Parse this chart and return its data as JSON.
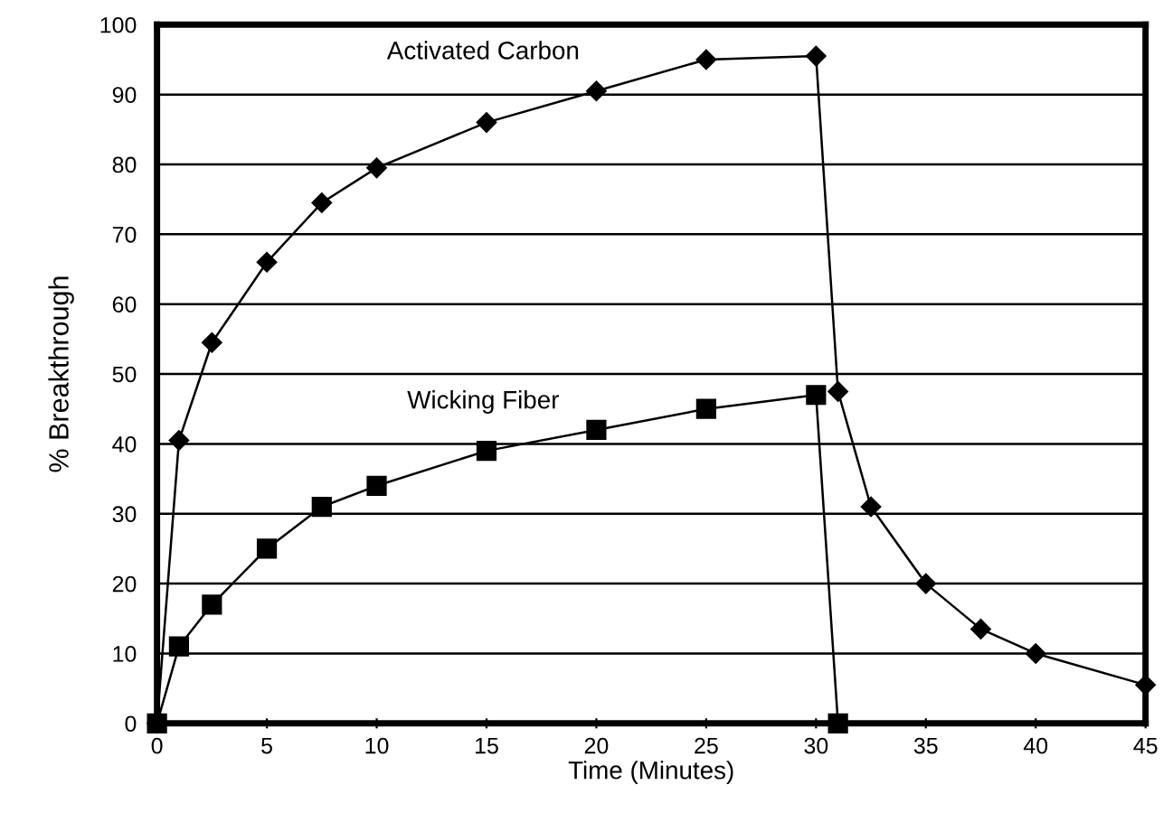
{
  "chart_data": {
    "type": "line",
    "xlabel": "Time (Minutes)",
    "ylabel": "% Breakthrough",
    "xlim": [
      0,
      45
    ],
    "xticks": [
      0,
      5,
      10,
      15,
      20,
      25,
      30,
      35,
      40,
      45
    ],
    "ylim": [
      0,
      100
    ],
    "yticks": [
      0,
      10,
      20,
      30,
      40,
      50,
      60,
      70,
      80,
      90,
      100
    ],
    "grid": "y",
    "legend": false,
    "series": [
      {
        "color": "#000000",
        "marker": "diamond",
        "x": [
          0,
          1,
          2.5,
          5,
          7.5,
          10,
          15,
          20,
          25,
          30,
          31,
          32.5,
          35,
          37.5,
          40,
          45
        ],
        "values": [
          0,
          40.5,
          54.5,
          66,
          74.5,
          79.5,
          86,
          90.5,
          95,
          95.5,
          47.5,
          31,
          20,
          13.5,
          10,
          5.5
        ]
      },
      {
        "color": "#000000",
        "marker": "square",
        "x": [
          0,
          1,
          2.5,
          5,
          7.5,
          10,
          15,
          20,
          25,
          30,
          31
        ],
        "values": [
          0,
          11,
          17,
          25,
          31,
          34,
          39,
          42,
          45,
          47,
          0
        ]
      }
    ],
    "annotations": [
      "Activated Carbon",
      "Wicking Fiber"
    ]
  }
}
